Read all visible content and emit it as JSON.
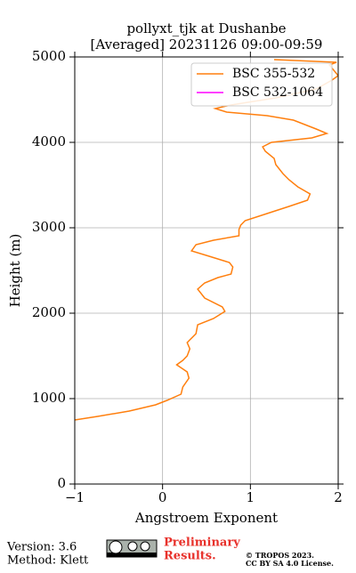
{
  "chart_data": {
    "type": "line",
    "title": "pollyxt_tjk at Dushanbe",
    "subtitle": "[Averaged] 20231126 09:00-09:59",
    "x_label": "Angstroem Exponent",
    "y_label": "Height (m)",
    "heights": [
      4969,
      4938,
      4906,
      4781,
      4729,
      4625,
      4521,
      4438,
      4396,
      4354,
      4313,
      4260,
      4156,
      4104,
      4052,
      4000,
      3948,
      3896,
      3813,
      3740,
      3635,
      3563,
      3479,
      3396,
      3323,
      3250,
      3167,
      3083,
      3031,
      2979,
      2906,
      2854,
      2802,
      2729,
      2667,
      2594,
      2542,
      2458,
      2417,
      2354,
      2281,
      2177,
      2073,
      2021,
      1938,
      1865,
      1760,
      1656,
      1583,
      1500,
      1448,
      1396,
      1313,
      1240,
      1135,
      1052,
      979,
      927,
      854,
      792,
      750
    ],
    "series": [
      {
        "name": "BSC 355-532",
        "color": "#ff7f0e",
        "values": [
          1.27,
          1.98,
          1.9,
          2.0,
          1.93,
          1.75,
          1.29,
          0.78,
          0.6,
          0.73,
          1.19,
          1.49,
          1.75,
          1.87,
          1.7,
          1.24,
          1.14,
          1.17,
          1.27,
          1.29,
          1.37,
          1.44,
          1.54,
          1.68,
          1.65,
          1.44,
          1.19,
          0.94,
          0.89,
          0.87,
          0.87,
          0.58,
          0.38,
          0.33,
          0.53,
          0.76,
          0.8,
          0.78,
          0.63,
          0.48,
          0.4,
          0.48,
          0.68,
          0.71,
          0.58,
          0.4,
          0.38,
          0.28,
          0.31,
          0.28,
          0.23,
          0.16,
          0.28,
          0.3,
          0.23,
          0.21,
          0.05,
          -0.08,
          -0.38,
          -0.74,
          -1.0
        ]
      },
      {
        "name": "BSC 532-1064",
        "color": "#ff00ff",
        "values": [
          null,
          null,
          null,
          null,
          null,
          null,
          null,
          null,
          null,
          null,
          null,
          null,
          null,
          null,
          null,
          null,
          null,
          null,
          null,
          null,
          null,
          null,
          null,
          null,
          null,
          null,
          null,
          null,
          null,
          null,
          null,
          null,
          null,
          null,
          null,
          null,
          null,
          null,
          null,
          null,
          null,
          null,
          null,
          null,
          null,
          null,
          null,
          null,
          null,
          null,
          null,
          null,
          null,
          null,
          null,
          null,
          null,
          null,
          null,
          null,
          null
        ]
      }
    ],
    "xlim": [
      -1,
      2
    ],
    "xticks": [
      {
        "value": -1,
        "label": "−1"
      },
      0,
      1,
      2
    ],
    "ylim": [
      0,
      5000
    ],
    "yticks": [
      0,
      1000,
      2000,
      3000,
      4000,
      5000
    ],
    "grid": true,
    "legend": "upper right"
  },
  "footer": {
    "version": "Version: 3.6",
    "method": "Method: Klett",
    "preliminary": [
      "Preliminary",
      "Results."
    ],
    "copyright": "© TROPOS 2023.",
    "license": "CC BY SA 4.0 License."
  }
}
